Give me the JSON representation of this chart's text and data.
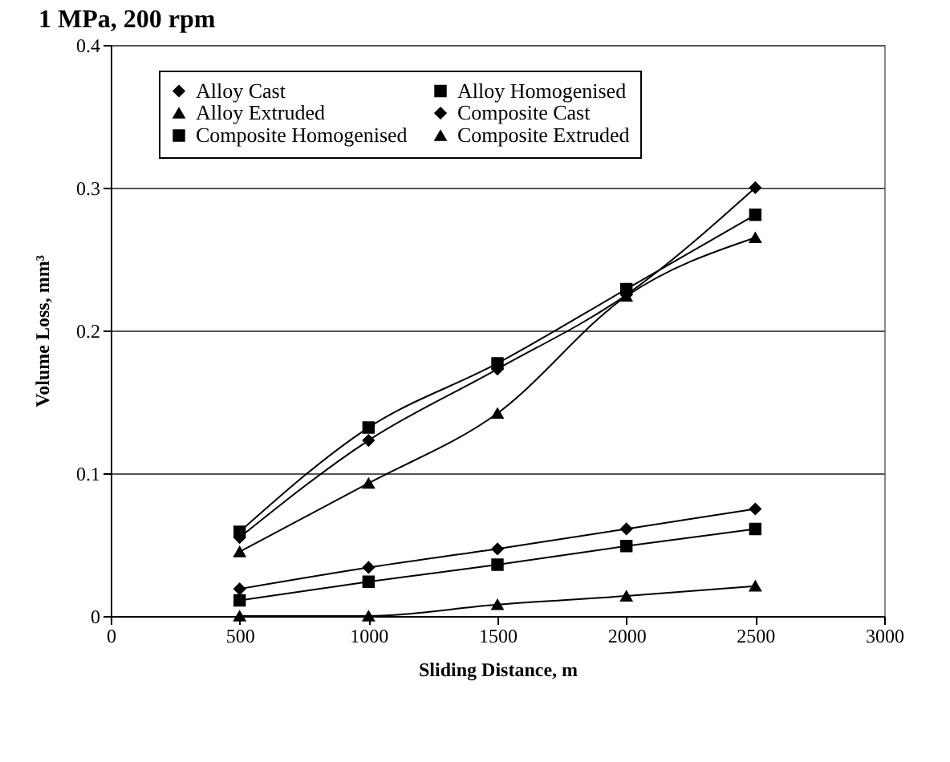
{
  "chart_data": {
    "type": "line",
    "title": "1 MPa, 200 rpm",
    "xlabel": "Sliding Distance, m",
    "ylabel": "Volume Loss, mm³",
    "x": [
      500,
      1000,
      1500,
      2000,
      2500
    ],
    "series": [
      {
        "name": "Alloy Cast",
        "color": "#000000",
        "marker": "diamond",
        "values": [
          0.055,
          0.123,
          0.173,
          0.225,
          0.3
        ]
      },
      {
        "name": "Alloy Homogenised",
        "color": "#000000",
        "marker": "square",
        "values": [
          0.059,
          0.132,
          0.177,
          0.229,
          0.281
        ]
      },
      {
        "name": "Alloy Extruded",
        "color": "#000000",
        "marker": "triangle",
        "values": [
          0.045,
          0.093,
          0.142,
          0.224,
          0.265
        ]
      },
      {
        "name": "Composite Cast",
        "color": "#000000",
        "marker": "diamond",
        "values": [
          0.019,
          0.034,
          0.047,
          0.061,
          0.075
        ]
      },
      {
        "name": "Composite Homogenised",
        "color": "#000000",
        "marker": "square",
        "values": [
          0.011,
          0.024,
          0.036,
          0.049,
          0.061
        ]
      },
      {
        "name": "Composite Extruded",
        "color": "#000000",
        "marker": "triangle",
        "values": [
          0,
          0,
          0.008,
          0.014,
          0.021
        ]
      }
    ],
    "xlim": [
      0,
      3000
    ],
    "xticks": [
      0,
      500,
      1000,
      1500,
      2000,
      2500,
      3000
    ],
    "ylim": [
      0,
      0.4
    ],
    "yticks": [
      0,
      0.1,
      0.2,
      0.3,
      0.4
    ],
    "grid": "y",
    "legend": "top",
    "line_style": "solid"
  }
}
